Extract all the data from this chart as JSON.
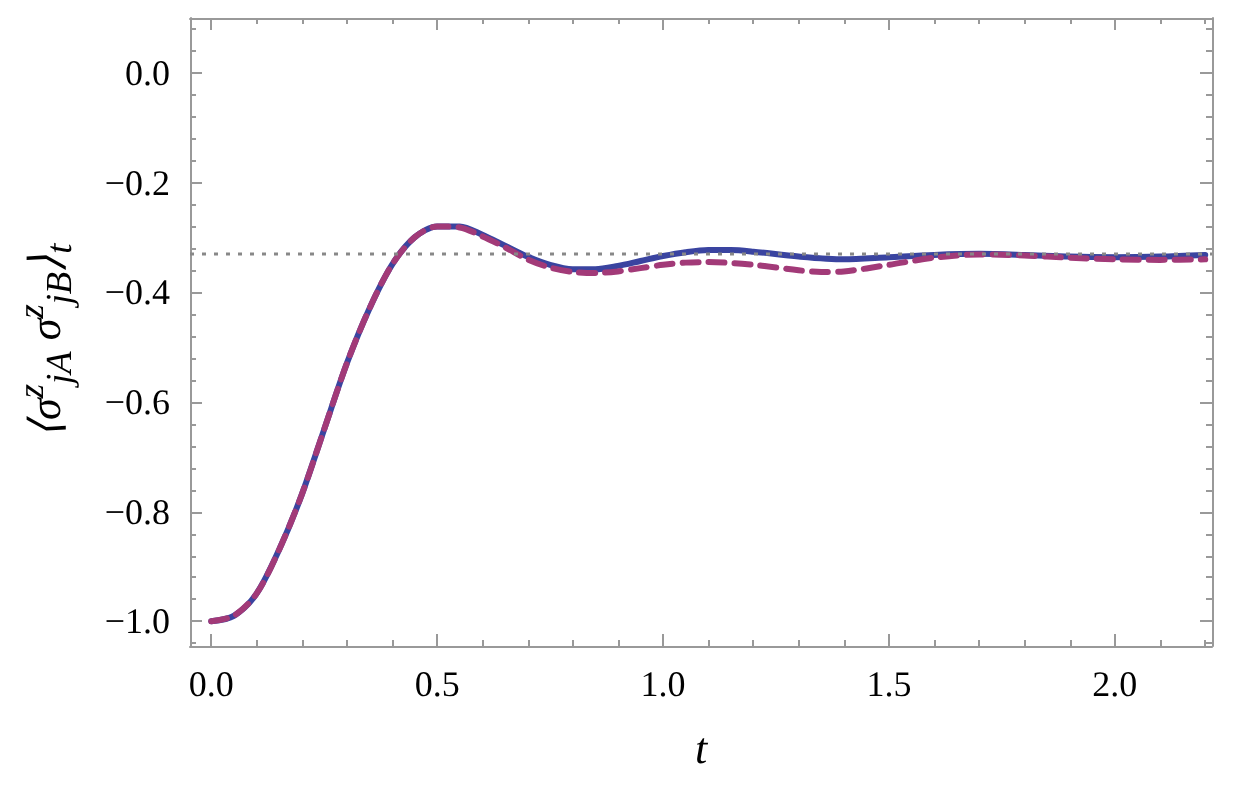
{
  "chart_data": {
    "type": "line",
    "xlabel": "t",
    "ylabel": "⟨σ$^{z}$$_{jA}$ σ$^{z}$$_{jB}$⟩$_{t}$",
    "xlim": [
      -0.047,
      2.215
    ],
    "ylim": [
      -1.045,
      0.1
    ],
    "xticks": [
      {
        "value": 0,
        "label": "0.0"
      },
      {
        "value": 0.5,
        "label": "0.5"
      },
      {
        "value": 1,
        "label": "1.0"
      },
      {
        "value": 1.5,
        "label": "1.5"
      },
      {
        "value": 2,
        "label": "2.0"
      }
    ],
    "yticks": [
      {
        "value": -1,
        "label": "−1.0"
      },
      {
        "value": -0.8,
        "label": "−0.8"
      },
      {
        "value": -0.6,
        "label": "−0.6"
      },
      {
        "value": -0.4,
        "label": "−0.4"
      },
      {
        "value": -0.2,
        "label": "−0.2"
      },
      {
        "value": 0,
        "label": "0.0"
      }
    ],
    "grid": false,
    "marker": "none",
    "ref_lines": [
      {
        "axis": "y",
        "value": -0.333,
        "color": "#888888",
        "line_style": "dotted"
      }
    ],
    "series": [
      {
        "color": "#3a44a0",
        "line_style": "solid",
        "x": [
          0,
          0.05,
          0.1,
          0.15,
          0.2,
          0.25,
          0.3,
          0.35,
          0.4,
          0.45,
          0.5,
          0.55,
          0.6,
          0.65,
          0.7,
          0.75,
          0.8,
          0.85,
          0.9,
          0.95,
          1.0,
          1.05,
          1.1,
          1.15,
          1.2,
          1.3,
          1.4,
          1.5,
          1.6,
          1.7,
          1.8,
          1.9,
          2.0,
          2.1,
          2.2
        ],
        "values": [
          -1.0,
          -0.99,
          -0.95,
          -0.87,
          -0.77,
          -0.65,
          -0.53,
          -0.43,
          -0.35,
          -0.3,
          -0.28,
          -0.28,
          -0.295,
          -0.315,
          -0.335,
          -0.35,
          -0.358,
          -0.358,
          -0.352,
          -0.343,
          -0.334,
          -0.327,
          -0.323,
          -0.323,
          -0.326,
          -0.335,
          -0.34,
          -0.336,
          -0.332,
          -0.33,
          -0.332,
          -0.335,
          -0.336,
          -0.335,
          -0.332
        ]
      },
      {
        "color": "#a23a78",
        "line_style": "dashed",
        "x": [
          0,
          0.05,
          0.1,
          0.15,
          0.2,
          0.25,
          0.3,
          0.35,
          0.4,
          0.45,
          0.5,
          0.55,
          0.6,
          0.65,
          0.7,
          0.75,
          0.8,
          0.85,
          0.9,
          0.95,
          1.0,
          1.05,
          1.1,
          1.2,
          1.3,
          1.35,
          1.4,
          1.5,
          1.6,
          1.7,
          1.8,
          1.9,
          2.0,
          2.1,
          2.2
        ],
        "values": [
          -1.0,
          -0.99,
          -0.95,
          -0.87,
          -0.77,
          -0.65,
          -0.53,
          -0.43,
          -0.35,
          -0.3,
          -0.28,
          -0.282,
          -0.298,
          -0.318,
          -0.34,
          -0.355,
          -0.363,
          -0.365,
          -0.362,
          -0.356,
          -0.35,
          -0.346,
          -0.345,
          -0.35,
          -0.36,
          -0.363,
          -0.362,
          -0.35,
          -0.337,
          -0.331,
          -0.333,
          -0.337,
          -0.34,
          -0.341,
          -0.34
        ]
      }
    ]
  }
}
